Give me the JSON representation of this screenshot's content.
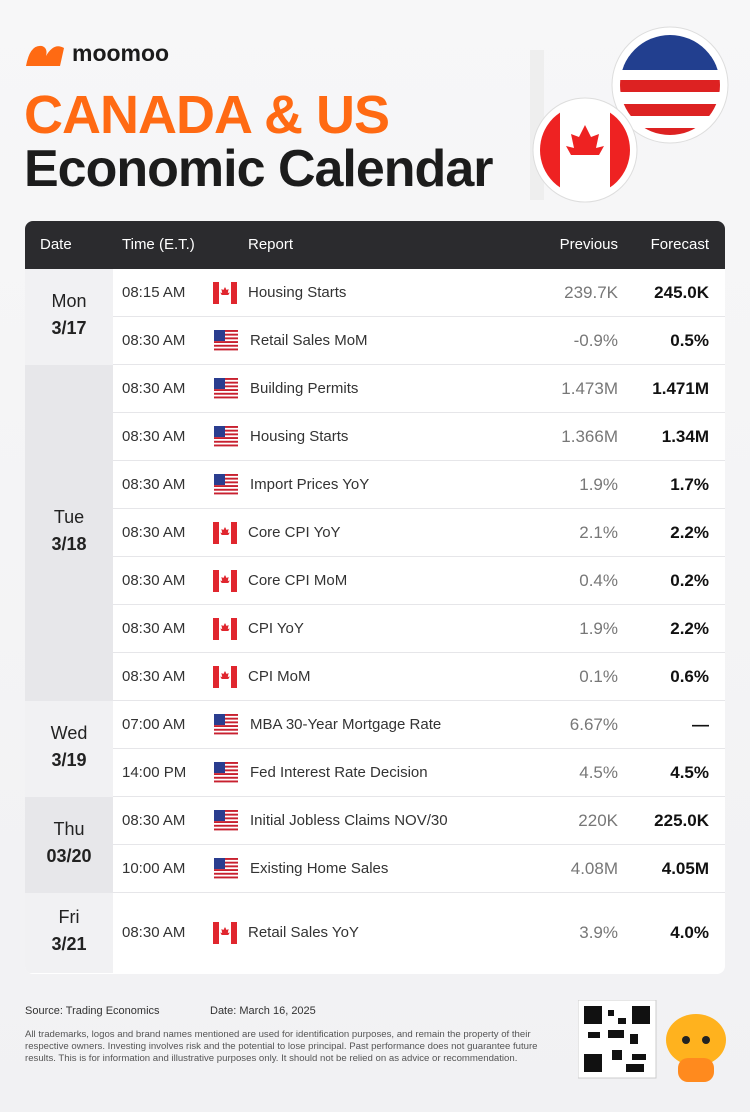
{
  "header": {
    "brand": "moomoo",
    "title_line1": "CANADA & US",
    "title_line2": "Economic Calendar"
  },
  "table": {
    "columns": [
      "Date",
      "Time (E.T.)",
      "Report",
      "Previous",
      "Forecast"
    ],
    "days": [
      {
        "day": "Mon",
        "date": "3/17",
        "rows": [
          {
            "time": "08:15 AM",
            "flag": "ca",
            "report": "Housing Starts",
            "previous": "239.7K",
            "forecast": "245.0K"
          },
          {
            "time": "08:30 AM",
            "flag": "us",
            "report": "Retail Sales MoM",
            "previous": "-0.9%",
            "forecast": "0.5%"
          }
        ]
      },
      {
        "day": "Tue",
        "date": "3/18",
        "rows": [
          {
            "time": "08:30 AM",
            "flag": "us",
            "report": "Building Permits",
            "previous": "1.473M",
            "forecast": "1.471M"
          },
          {
            "time": "08:30 AM",
            "flag": "us",
            "report": "Housing Starts",
            "previous": "1.366M",
            "forecast": "1.34M"
          },
          {
            "time": "08:30 AM",
            "flag": "us",
            "report": "Import Prices YoY",
            "previous": "1.9%",
            "forecast": "1.7%"
          },
          {
            "time": "08:30 AM",
            "flag": "ca",
            "report": "Core CPI YoY",
            "previous": "2.1%",
            "forecast": "2.2%"
          },
          {
            "time": "08:30 AM",
            "flag": "ca",
            "report": "Core CPI MoM",
            "previous": "0.4%",
            "forecast": "0.2%"
          },
          {
            "time": "08:30 AM",
            "flag": "ca",
            "report": "CPI YoY",
            "previous": "1.9%",
            "forecast": "2.2%"
          },
          {
            "time": "08:30 AM",
            "flag": "ca",
            "report": "CPI MoM",
            "previous": "0.1%",
            "forecast": "0.6%"
          }
        ]
      },
      {
        "day": "Wed",
        "date": "3/19",
        "rows": [
          {
            "time": "07:00 AM",
            "flag": "us",
            "report": "MBA 30-Year Mortgage Rate",
            "previous": "6.67%",
            "forecast": "—"
          },
          {
            "time": "14:00 PM",
            "flag": "us",
            "report": "Fed Interest Rate Decision",
            "previous": "4.5%",
            "forecast": "4.5%"
          }
        ]
      },
      {
        "day": "Thu",
        "date": "03/20",
        "rows": [
          {
            "time": "08:30 AM",
            "flag": "us",
            "report": "Initial Jobless Claims NOV/30",
            "previous": "220K",
            "forecast": "225.0K"
          },
          {
            "time": "10:00 AM",
            "flag": "us",
            "report": "Existing Home Sales",
            "previous": "4.08M",
            "forecast": "4.05M"
          }
        ]
      },
      {
        "day": "Fri",
        "date": "3/21",
        "rows": [
          {
            "time": "08:30 AM",
            "flag": "ca",
            "report": "Retail Sales YoY",
            "previous": "3.9%",
            "forecast": "4.0%"
          }
        ]
      }
    ]
  },
  "footer": {
    "source": "Source: Trading Economics",
    "date": "Date: March 16, 2025",
    "disclaimer": "All trademarks, logos and brand names mentioned are used for identification purposes, and remain the property of their respective owners. Investing involves risk and the potential to lose principal. Past performance does not guarantee future results. This is for information and illustrative purposes only. It should not be relied on as advice or recommendation."
  }
}
